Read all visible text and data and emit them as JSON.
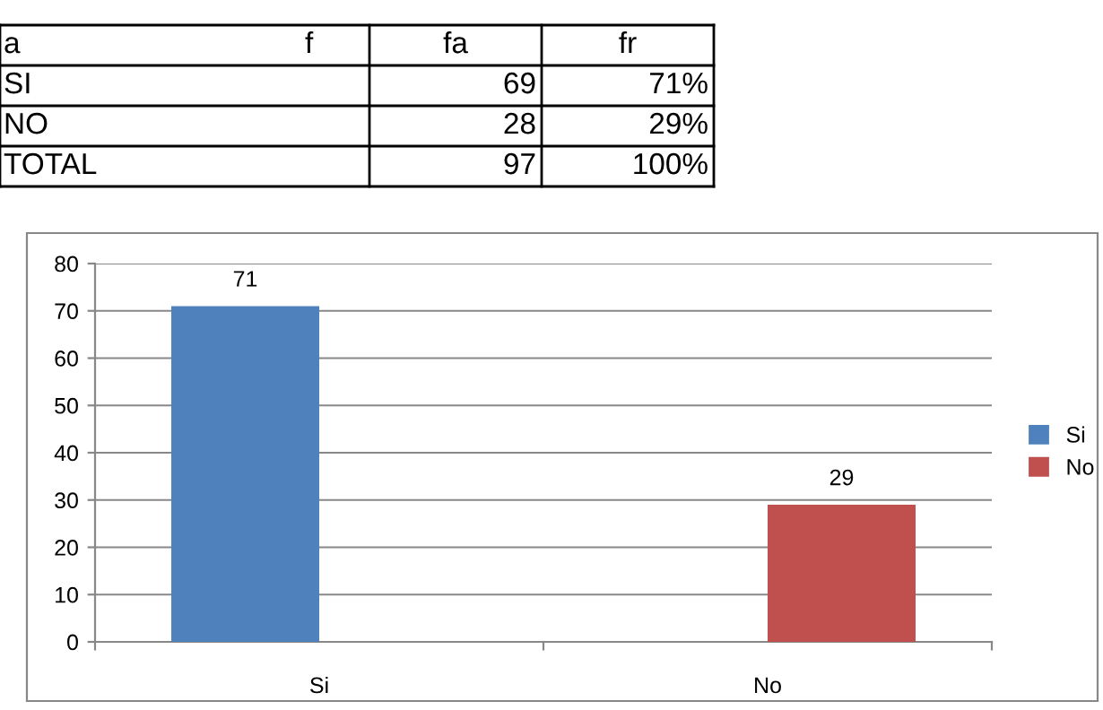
{
  "chart_data": [
    {
      "type": "other",
      "annotations": [
        "a",
        "f",
        "fa",
        "fr",
        "SI",
        "69",
        "71%",
        "NO",
        "28",
        "29%",
        "TOTAL",
        "97",
        "100%"
      ]
    },
    {
      "type": "bar",
      "categories": [
        "Si",
        "No"
      ],
      "series": [
        {
          "name": "Si",
          "color": "#4f81bd",
          "values": [
            71,
            null
          ]
        },
        {
          "name": "No",
          "color": "#c0504d",
          "values": [
            null,
            29
          ]
        }
      ],
      "ylim": [
        0,
        80
      ],
      "yticks": [
        0,
        10,
        20,
        30,
        40,
        50,
        60,
        70,
        80
      ],
      "grid": "y",
      "legend": "right",
      "data_labels": true
    }
  ]
}
